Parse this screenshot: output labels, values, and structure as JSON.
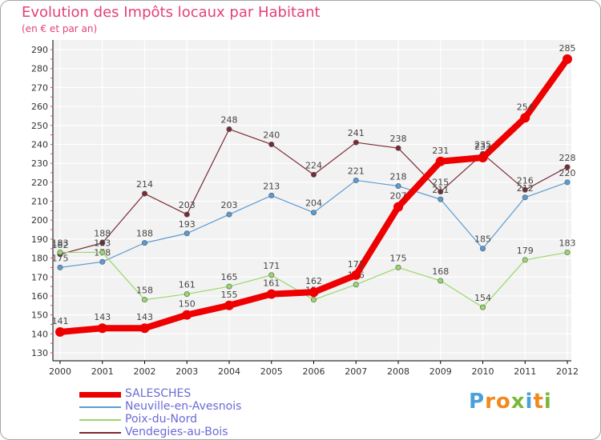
{
  "header": {
    "title": "Evolution des Impôts locaux par Habitant",
    "subtitle": "(en € et par an)"
  },
  "logo": {
    "letters": [
      "P",
      "r",
      "o",
      "x",
      "i",
      "t",
      "i"
    ],
    "colors": [
      "#4aa0d8",
      "#f08a1e",
      "#f08a1e",
      "#7ab83a",
      "#4aa0d8",
      "#f08a1e",
      "#7ab83a"
    ]
  },
  "chart_data": {
    "type": "line",
    "title": "Evolution des Impôts locaux par Habitant",
    "subtitle": "(en € et par an)",
    "xlabel": "",
    "ylabel": "",
    "x": [
      "2000",
      "2001",
      "2002",
      "2003",
      "2004",
      "2005",
      "2006",
      "2007",
      "2008",
      "2009",
      "2010",
      "2011",
      "2012"
    ],
    "ylim": [
      130,
      290
    ],
    "yticks": [
      130,
      140,
      150,
      160,
      170,
      180,
      190,
      200,
      210,
      220,
      230,
      240,
      250,
      260,
      270,
      280,
      290
    ],
    "grid": true,
    "legend_position": "bottom-left",
    "series": [
      {
        "name": "Vendegies-au-Bois",
        "color": "#7a2a36",
        "values": [
          182,
          188,
          214,
          203,
          248,
          240,
          224,
          241,
          238,
          215,
          235,
          216,
          228
        ],
        "labels": [
          "182",
          "188",
          "214",
          "203",
          "248",
          "240",
          "224",
          "241",
          "238",
          "215",
          "235",
          "216",
          "228"
        ]
      },
      {
        "name": "Neuville-en-Avesnois",
        "color": "#5a9bd3",
        "values": [
          175,
          178,
          188,
          193,
          203,
          213,
          204,
          221,
          218,
          211,
          185,
          212,
          220
        ],
        "labels": [
          "175",
          "178",
          "188",
          "193",
          "203",
          "213",
          "204",
          "221",
          "218",
          "211",
          "185",
          "212",
          "220"
        ]
      },
      {
        "name": "Poix-du-Nord",
        "color": "#98d86a",
        "values": [
          183,
          183,
          158,
          161,
          165,
          171,
          158,
          166,
          175,
          168,
          154,
          179,
          183
        ],
        "labels": [
          "183",
          "183",
          "158",
          "161",
          "165",
          "171",
          "158",
          "166",
          "175",
          "168",
          "154",
          "179",
          "183"
        ]
      },
      {
        "name": "SALESCHES",
        "color": "#ee0000",
        "values": [
          141,
          143,
          143,
          150,
          155,
          161,
          162,
          171,
          207,
          231,
          233,
          254,
          285
        ],
        "labels": [
          "141",
          "143",
          "143",
          "150",
          "155",
          "161",
          "162",
          "171",
          "207",
          "231",
          "233",
          "254",
          "285"
        ]
      }
    ]
  },
  "legend": {
    "items": [
      {
        "label": "SALESCHES",
        "color": "#ee0000",
        "weight": 7
      },
      {
        "label": "Neuville-en-Avesnois",
        "color": "#5a9bd3",
        "weight": 2
      },
      {
        "label": "Poix-du-Nord",
        "color": "#98d86a",
        "weight": 2
      },
      {
        "label": "Vendegies-au-Bois",
        "color": "#7a2a36",
        "weight": 2
      }
    ]
  }
}
